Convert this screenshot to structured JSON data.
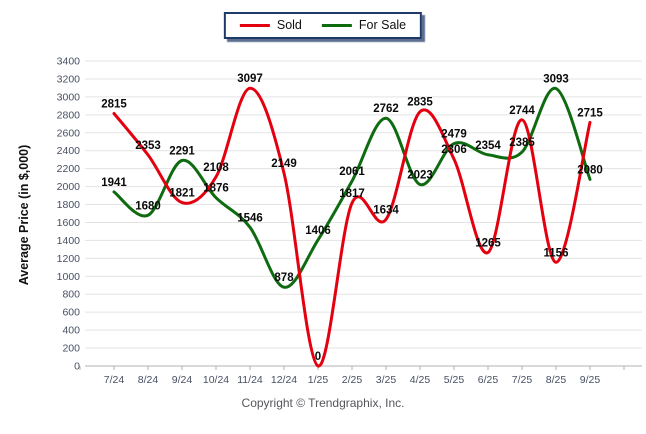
{
  "legend": {
    "position": "top-center"
  },
  "footer": {
    "copyright": "Copyright © Trendgraphix, Inc."
  },
  "chart_data": {
    "type": "line",
    "smooth": true,
    "grid": true,
    "data_labels": true,
    "title": "",
    "xlabel": "",
    "ylabel": "Average Price (in $,000)",
    "ylim": [
      0,
      3400
    ],
    "ytick_step": 200,
    "legend_position": "top-center",
    "categories": [
      "7/24",
      "8/24",
      "9/24",
      "10/24",
      "11/24",
      "12/24",
      "1/25",
      "2/25",
      "3/25",
      "4/25",
      "5/25",
      "6/25",
      "7/25",
      "8/25",
      "9/25"
    ],
    "series": [
      {
        "name": "Sold",
        "color": "#e4000f",
        "values": [
          2815,
          2353,
          1821,
          2108,
          3097,
          2149,
          0,
          1817,
          1634,
          2835,
          2306,
          1265,
          2744,
          1156,
          2715
        ]
      },
      {
        "name": "For Sale",
        "color": "#0e6b10",
        "values": [
          1941,
          1680,
          2291,
          1876,
          1546,
          878,
          1406,
          2061,
          2762,
          2023,
          2479,
          2354,
          2385,
          3093,
          2080
        ]
      }
    ],
    "colors": {
      "gridline": "#e3e3e3",
      "axis": "#b0b0b0",
      "tick_text": "#474f63",
      "label_text": "#0a0a0a"
    }
  }
}
